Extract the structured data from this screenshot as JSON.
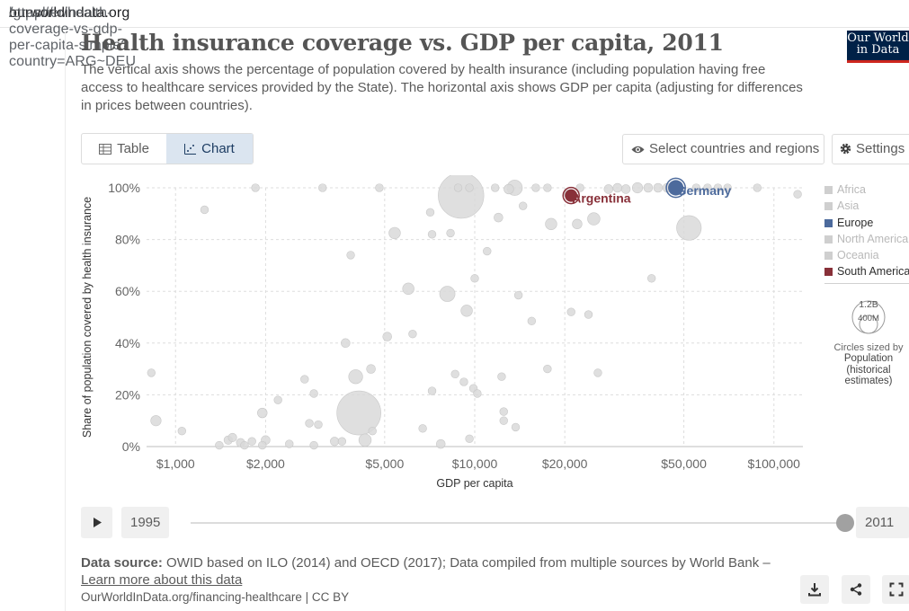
{
  "browser": {
    "url_prefix": "https://",
    "url_host": "ourworldindata.org",
    "url_path": "/grapher/health-coverage-vs-gdp-per-capita-simple?country=ARG~DEU"
  },
  "header": {
    "title": "Health insurance coverage vs. GDP per capita, 2011",
    "subtitle": "The vertical axis shows the percentage of population covered by health insurance (including population having free access to healthcare services provided by the State). The horizontal axis shows GDP per capita (adjusting for differences in prices between countries).",
    "logo_line1": "Our World",
    "logo_line2": "in Data"
  },
  "controls": {
    "tab_table": "Table",
    "tab_chart": "Chart",
    "select_button": "Select countries and regions",
    "settings_button": "Settings"
  },
  "legend": {
    "items": [
      {
        "label": "Africa",
        "color": "#cfcfcf",
        "active": false
      },
      {
        "label": "Asia",
        "color": "#cfcfcf",
        "active": false
      },
      {
        "label": "Europe",
        "color": "#4c6a9c",
        "active": true
      },
      {
        "label": "North America",
        "color": "#cfcfcf",
        "active": false
      },
      {
        "label": "Oceania",
        "color": "#cfcfcf",
        "active": false
      },
      {
        "label": "South America",
        "color": "#883039",
        "active": true
      }
    ],
    "size_big": "1.2B",
    "size_small": "400M",
    "size_caption": "Circles sized by",
    "size_variable": "Population (historical estimates)"
  },
  "timeline": {
    "start_year": "1995",
    "end_year": "2011"
  },
  "footer": {
    "data_source_label": "Data source:",
    "data_source_text": "OWID based on ILO (2014) and OECD (2017); Data compiled from multiple sources by World Bank –",
    "learn_more": "Learn more about this data",
    "source_line": "OurWorldInData.org/financing-healthcare | CC BY"
  },
  "chart_data": {
    "type": "scatter",
    "title": "Health insurance coverage vs. GDP per capita, 2011",
    "xlabel": "GDP per capita",
    "ylabel": "Share of population covered by health insurance",
    "x_scale": "log",
    "xlim": [
      800,
      125000
    ],
    "ylim": [
      0,
      100
    ],
    "x_ticks": [
      1000,
      2000,
      5000,
      10000,
      20000,
      50000,
      100000
    ],
    "x_tick_labels": [
      "$1,000",
      "$2,000",
      "$5,000",
      "$10,000",
      "$20,000",
      "$50,000",
      "$100,000"
    ],
    "y_ticks": [
      0,
      20,
      40,
      60,
      80,
      100
    ],
    "y_tick_labels": [
      "0%",
      "20%",
      "40%",
      "60%",
      "80%",
      "100%"
    ],
    "grid": true,
    "legend_position": "right",
    "highlighted_series": [
      {
        "name": "Argentina",
        "region": "South America",
        "color": "#883039",
        "x": 21000,
        "y": 97,
        "population": 41000000
      },
      {
        "name": "Germany",
        "region": "Europe",
        "color": "#4c6a9c",
        "x": 47000,
        "y": 100,
        "population": 81000000
      }
    ],
    "background_points": [
      {
        "x": 860,
        "y": 10,
        "population": 20000000
      },
      {
        "x": 830,
        "y": 28.5,
        "population": 5000000
      },
      {
        "x": 1050,
        "y": 6,
        "population": 5000000
      },
      {
        "x": 1250,
        "y": 91.5,
        "population": 5000000
      },
      {
        "x": 1400,
        "y": 0.5,
        "population": 5000000
      },
      {
        "x": 1500,
        "y": 2.5,
        "population": 8000000
      },
      {
        "x": 1550,
        "y": 3.5,
        "population": 8000000
      },
      {
        "x": 1650,
        "y": 1.5,
        "population": 8000000
      },
      {
        "x": 1700,
        "y": 0.5,
        "population": 5000000
      },
      {
        "x": 1800,
        "y": 2,
        "population": 5000000
      },
      {
        "x": 1950,
        "y": 0.5,
        "population": 5000000
      },
      {
        "x": 1850,
        "y": 100,
        "population": 5000000
      },
      {
        "x": 1950,
        "y": 13,
        "population": 15000000
      },
      {
        "x": 2000,
        "y": 2.5,
        "population": 10000000
      },
      {
        "x": 2200,
        "y": 18,
        "population": 5000000
      },
      {
        "x": 2400,
        "y": 1,
        "population": 5000000
      },
      {
        "x": 2700,
        "y": 26,
        "population": 5000000
      },
      {
        "x": 2800,
        "y": 9,
        "population": 5000000
      },
      {
        "x": 2900,
        "y": 20.5,
        "population": 5000000
      },
      {
        "x": 3000,
        "y": 8.5,
        "population": 5000000
      },
      {
        "x": 2900,
        "y": 0.5,
        "population": 5000000
      },
      {
        "x": 3100,
        "y": 100,
        "population": 5000000
      },
      {
        "x": 3400,
        "y": 2,
        "population": 8000000
      },
      {
        "x": 3600,
        "y": 2,
        "population": 5000000
      },
      {
        "x": 3700,
        "y": 40,
        "population": 10000000
      },
      {
        "x": 3850,
        "y": 74,
        "population": 5000000
      },
      {
        "x": 4100,
        "y": 13,
        "population": 1200000000
      },
      {
        "x": 4000,
        "y": 27,
        "population": 60000000
      },
      {
        "x": 4300,
        "y": 2.5,
        "population": 40000000
      },
      {
        "x": 4500,
        "y": 30,
        "population": 10000000
      },
      {
        "x": 4800,
        "y": 100,
        "population": 5000000
      },
      {
        "x": 4550,
        "y": 6,
        "population": 5000000
      },
      {
        "x": 5100,
        "y": 42.5,
        "population": 10000000
      },
      {
        "x": 5400,
        "y": 82.5,
        "population": 30000000
      },
      {
        "x": 6000,
        "y": 61,
        "population": 30000000
      },
      {
        "x": 6200,
        "y": 43.5,
        "population": 5000000
      },
      {
        "x": 6700,
        "y": 7,
        "population": 5000000
      },
      {
        "x": 7100,
        "y": 90.5,
        "population": 5000000
      },
      {
        "x": 7200,
        "y": 82,
        "population": 5000000
      },
      {
        "x": 7200,
        "y": 21.5,
        "population": 5000000
      },
      {
        "x": 7700,
        "y": 1,
        "population": 10000000
      },
      {
        "x": 8100,
        "y": 59,
        "population": 80000000
      },
      {
        "x": 8300,
        "y": 82.5,
        "population": 5000000
      },
      {
        "x": 8600,
        "y": 28,
        "population": 5000000
      },
      {
        "x": 8800,
        "y": 100,
        "population": 5000000
      },
      {
        "x": 9000,
        "y": 97,
        "population": 1300000000
      },
      {
        "x": 9200,
        "y": 25,
        "population": 5000000
      },
      {
        "x": 9400,
        "y": 52.5,
        "population": 30000000
      },
      {
        "x": 9600,
        "y": 3,
        "population": 5000000
      },
      {
        "x": 9600,
        "y": 100,
        "population": 5000000
      },
      {
        "x": 9900,
        "y": 22.5,
        "population": 5000000
      },
      {
        "x": 10000,
        "y": 65,
        "population": 5000000
      },
      {
        "x": 10200,
        "y": 20.5,
        "population": 5000000
      },
      {
        "x": 11000,
        "y": 75.5,
        "population": 5000000
      },
      {
        "x": 11700,
        "y": 100,
        "population": 5000000
      },
      {
        "x": 12000,
        "y": 88.5,
        "population": 10000000
      },
      {
        "x": 12300,
        "y": 27,
        "population": 5000000
      },
      {
        "x": 12500,
        "y": 13.5,
        "population": 5000000
      },
      {
        "x": 12500,
        "y": 10,
        "population": 5000000
      },
      {
        "x": 13000,
        "y": 99.5,
        "population": 15000000
      },
      {
        "x": 13600,
        "y": 100,
        "population": 80000000
      },
      {
        "x": 14000,
        "y": 58.5,
        "population": 5000000
      },
      {
        "x": 13700,
        "y": 7.5,
        "population": 5000000
      },
      {
        "x": 14500,
        "y": 93,
        "population": 5000000
      },
      {
        "x": 15500,
        "y": 48.5,
        "population": 5000000
      },
      {
        "x": 16000,
        "y": 100,
        "population": 5000000
      },
      {
        "x": 17500,
        "y": 30,
        "population": 5000000
      },
      {
        "x": 17500,
        "y": 100,
        "population": 5000000
      },
      {
        "x": 18000,
        "y": 86,
        "population": 30000000
      },
      {
        "x": 20500,
        "y": 97.5,
        "population": 5000000
      },
      {
        "x": 21000,
        "y": 52,
        "population": 5000000
      },
      {
        "x": 22000,
        "y": 86,
        "population": 15000000
      },
      {
        "x": 22500,
        "y": 100,
        "population": 5000000
      },
      {
        "x": 24000,
        "y": 51,
        "population": 5000000
      },
      {
        "x": 25000,
        "y": 88,
        "population": 40000000
      },
      {
        "x": 25800,
        "y": 28.5,
        "population": 5000000
      },
      {
        "x": 28000,
        "y": 99.5,
        "population": 10000000
      },
      {
        "x": 30000,
        "y": 100,
        "population": 10000000
      },
      {
        "x": 32000,
        "y": 99.5,
        "population": 10000000
      },
      {
        "x": 35000,
        "y": 100,
        "population": 20000000
      },
      {
        "x": 38000,
        "y": 100,
        "population": 10000000
      },
      {
        "x": 39000,
        "y": 65,
        "population": 5000000
      },
      {
        "x": 41000,
        "y": 100,
        "population": 10000000
      },
      {
        "x": 44000,
        "y": 100,
        "population": 10000000
      },
      {
        "x": 52000,
        "y": 84.5,
        "population": 300000000
      },
      {
        "x": 55000,
        "y": 100,
        "population": 5000000
      },
      {
        "x": 60000,
        "y": 100,
        "population": 5000000
      },
      {
        "x": 65000,
        "y": 100,
        "population": 5000000
      },
      {
        "x": 70000,
        "y": 100,
        "population": 5000000
      },
      {
        "x": 88000,
        "y": 100,
        "population": 5000000
      },
      {
        "x": 120000,
        "y": 97.5,
        "population": 5000000
      }
    ]
  }
}
